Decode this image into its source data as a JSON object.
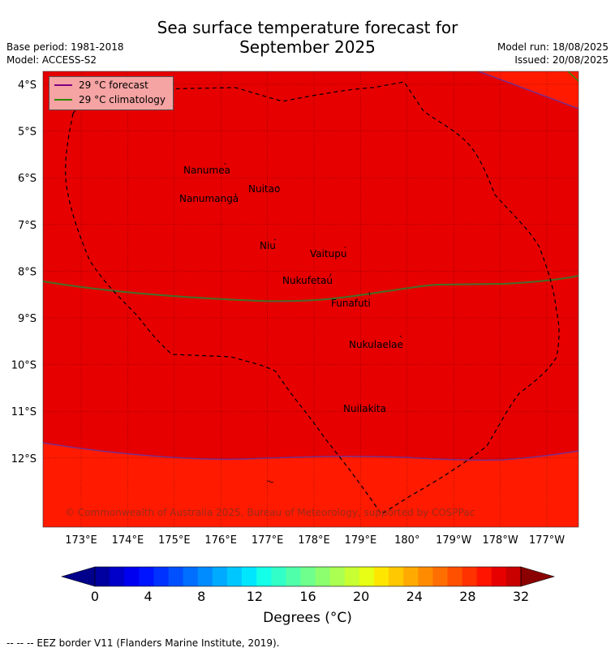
{
  "header": {
    "title_line1": "Sea surface temperature forecast for",
    "title_line2": "September 2025",
    "base_period": "Base period: 1981-2018",
    "model": "Model: ACCESS-S2",
    "model_run": "Model run: 18/08/2025",
    "issued": "Issued: 20/08/2025"
  },
  "legend": {
    "forecast_label": "29 °C  forecast",
    "forecast_color": "#800080",
    "climatology_label": "29 °C  climatology",
    "climatology_color": "#2e8b00"
  },
  "map": {
    "lat_labels": [
      "4°S",
      "5°S",
      "6°S",
      "7°S",
      "8°S",
      "9°S",
      "10°S",
      "11°S",
      "12°S"
    ],
    "lon_labels": [
      "173°E",
      "174°E",
      "175°E",
      "176°E",
      "177°E",
      "178°E",
      "179°E",
      "180°",
      "179°W",
      "178°W",
      "177°W"
    ],
    "islands": [
      "Nanumea",
      "Nuitao",
      "Nanumanga",
      "Niu",
      "Vaitupu",
      "Nukufetau",
      "Funafuti",
      "Nukulaelae",
      "Nuilakita"
    ],
    "copyright": "© Commonwealth of Australia 2025, Bureau of Meteorology, supported by COSPPac",
    "colors": {
      "main_fill": "#e60000",
      "upper_right": "#ff1a00",
      "south_fill": "#ff1a00"
    }
  },
  "colorbar": {
    "ticks": [
      "0",
      "4",
      "8",
      "12",
      "16",
      "20",
      "24",
      "28",
      "32"
    ],
    "label": "Degrees (°C)",
    "colors": [
      "#00008b",
      "#00009e",
      "#0000c8",
      "#0000f0",
      "#0014ff",
      "#0032ff",
      "#0050ff",
      "#006eff",
      "#008cff",
      "#00aaff",
      "#00c8ff",
      "#00e6ff",
      "#14ffe8",
      "#32ffc8",
      "#50ffaa",
      "#6eff8c",
      "#8cff6e",
      "#aaff50",
      "#c8ff32",
      "#e6ff14",
      "#ffe600",
      "#ffc800",
      "#ffaa00",
      "#ff8c00",
      "#ff6e00",
      "#ff5000",
      "#ff3200",
      "#ff1400",
      "#e60000",
      "#c80000",
      "#8b0000"
    ]
  },
  "footer": {
    "eez_note": "--  --  -- EEZ border V11 (Flanders Marine Institute, 2019)."
  }
}
